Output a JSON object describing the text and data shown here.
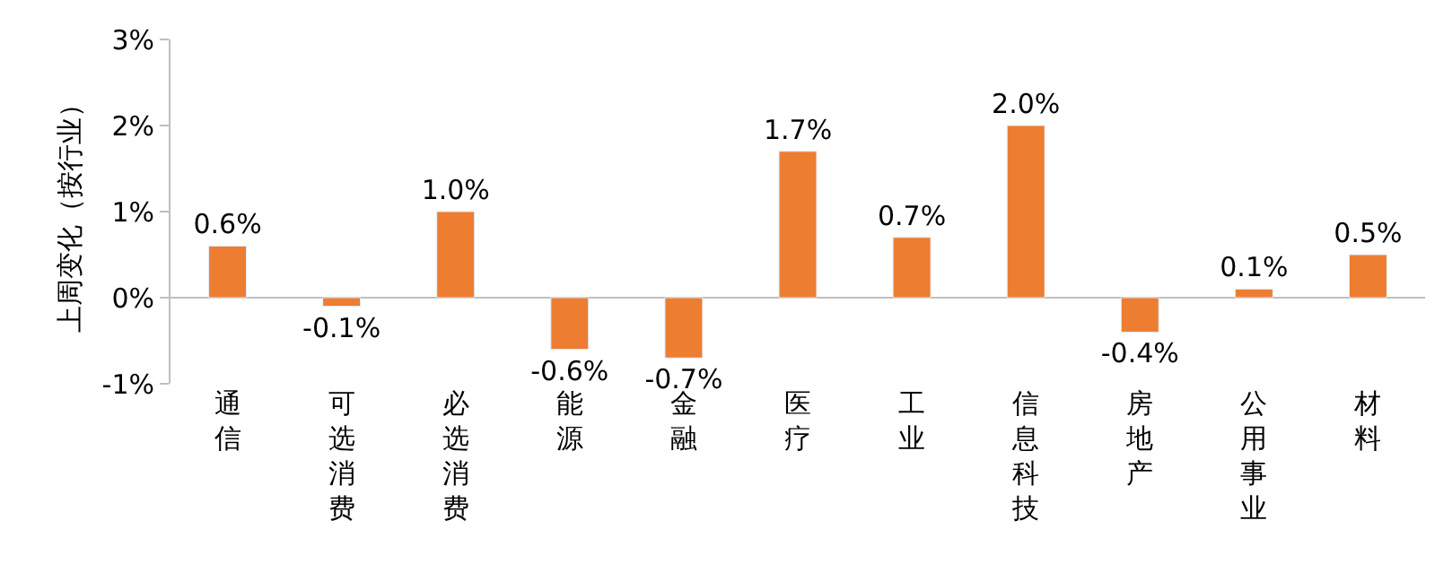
{
  "chart_data": {
    "type": "bar",
    "ylabel": "上周变化（按行业）",
    "categories": [
      "通信",
      "可选消费",
      "必选消费",
      "能源",
      "金融",
      "医疗",
      "工业",
      "信息科技",
      "房地产",
      "公用事业",
      "材料"
    ],
    "values": [
      0.6,
      -0.1,
      1.0,
      -0.6,
      -0.7,
      1.7,
      0.7,
      2.0,
      -0.4,
      0.1,
      0.5
    ],
    "value_labels": [
      "0.6%",
      "-0.1%",
      "1.0%",
      "-0.6%",
      "-0.7%",
      "1.7%",
      "0.7%",
      "2.0%",
      "-0.4%",
      "0.1%",
      "0.5%"
    ],
    "color": "#ed7d31",
    "ylim": [
      -1,
      3
    ],
    "yticks": [
      {
        "value": -1,
        "label": "-1%"
      },
      {
        "value": 0,
        "label": "0%"
      },
      {
        "value": 1,
        "label": "1%"
      },
      {
        "value": 2,
        "label": "2%"
      },
      {
        "value": 3,
        "label": "3%"
      }
    ],
    "legend": false
  }
}
